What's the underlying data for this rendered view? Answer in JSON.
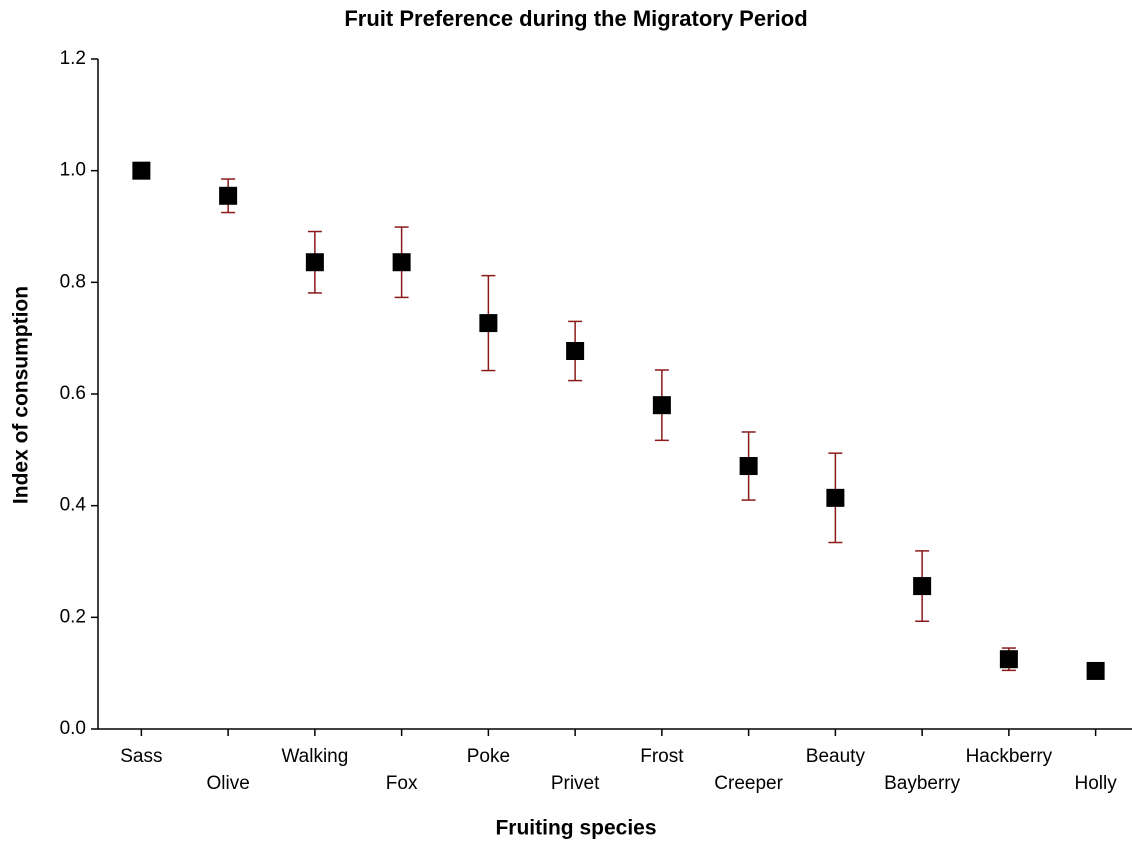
{
  "chart_data": {
    "type": "errorbar",
    "title": "Fruit Preference during the Migratory Period",
    "x_label": "Fruiting species",
    "y_label": "Index of consumption",
    "categories": [
      "Sass",
      "Olive",
      "Walking",
      "Fox",
      "Poke",
      "Privet",
      "Frost",
      "Creeper",
      "Beauty",
      "Bayberry",
      "Hackberry",
      "Holly"
    ],
    "values": [
      1.0,
      0.955,
      0.836,
      0.836,
      0.727,
      0.677,
      0.58,
      0.471,
      0.414,
      0.256,
      0.125,
      0.104
    ],
    "errors": [
      0,
      0.03,
      0.055,
      0.063,
      0.085,
      0.053,
      0.063,
      0.061,
      0.08,
      0.063,
      0.02,
      0
    ],
    "color": "#000000",
    "error_color": "#8b1a1a",
    "ylim": [
      0,
      1.2
    ],
    "yticks": [
      {
        "value": 0,
        "label": "0.0"
      },
      0.2,
      0.4,
      0.6,
      0.8,
      {
        "value": 1,
        "label": "1.0"
      },
      1.2
    ]
  }
}
